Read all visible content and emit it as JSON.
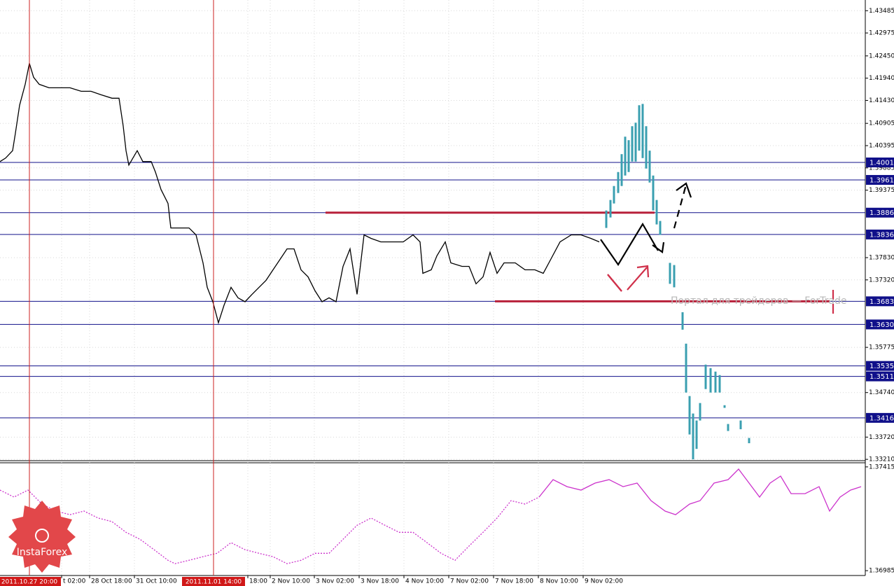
{
  "chart_data": {
    "type": "line",
    "xlim": [
      0,
      309
    ],
    "ylim": [
      1.3318,
      1.4373
    ],
    "grid": true,
    "yticks": [
      1.43485,
      1.42975,
      {
        "value": 1.4245,
        "label": "1.42450"
      },
      {
        "value": 1.4194,
        "label": "1.41940"
      },
      {
        "value": 1.4143,
        "label": "1.41430"
      },
      1.40905,
      1.40395,
      1.39885,
      1.39375,
      {
        "value": 1.3783,
        "label": "1.37830"
      },
      {
        "value": 1.3732,
        "label": "1.37320"
      },
      1.35775,
      {
        "value": 1.3474,
        "label": "1.34740"
      },
      {
        "value": 1.3372,
        "label": "1.33720"
      },
      {
        "value": 1.3321,
        "label": "1.33210"
      }
    ],
    "xticks": [
      {
        "value": 22,
        "label": "t 02:00"
      },
      {
        "value": 32,
        "label": "28 Oct 18:00"
      },
      {
        "value": 48,
        "label": "31 Oct 10:00"
      },
      {
        "value": 88.5,
        "label": "18:00"
      },
      {
        "value": 96.5,
        "label": "2 Nov 10:00"
      },
      {
        "value": 112.25,
        "label": "3 Nov 02:00"
      },
      {
        "value": 128.25,
        "label": "3 Nov 18:00"
      },
      {
        "value": 144.25,
        "label": "4 Nov 10:00"
      },
      {
        "value": 160.25,
        "label": "7 Nov 02:00"
      },
      {
        "value": 176.25,
        "label": "7 Nov 18:00"
      },
      {
        "value": 192.25,
        "label": "8 Nov 10:00"
      },
      {
        "value": 208.25,
        "label": "9 Nov 02:00"
      }
    ],
    "markers": [
      {
        "x": 10.5,
        "label": "2011.10.27 20:00"
      },
      {
        "x": 76.25,
        "label": "2011.11.01 14:00"
      }
    ],
    "price": {
      "color": "#000000",
      "x": [
        0,
        2,
        4.5,
        5.5,
        7,
        9,
        10.5,
        12,
        14,
        17.5,
        21,
        25,
        29,
        32.5,
        36,
        40,
        42.5,
        44,
        45,
        46,
        49,
        51,
        54,
        55.5,
        57.5,
        60,
        61,
        64,
        67.5,
        70,
        72.5,
        74,
        76,
        78,
        80,
        82.5,
        85,
        87.5,
        90,
        92.5,
        95,
        97.5,
        100,
        102.5,
        105,
        107.5,
        110,
        112.5,
        115,
        117.5,
        120,
        122.5,
        125,
        127.5,
        130,
        132.5,
        136,
        140,
        144,
        147.5,
        150,
        151,
        154,
        156,
        159,
        161,
        165,
        167.5,
        170,
        172.5,
        175,
        177.5,
        180,
        184,
        187.5,
        191,
        194,
        196,
        200,
        204,
        207.5,
        211,
        214
      ],
      "values": [
        1.4003,
        1.4011,
        1.4028,
        1.4068,
        1.4132,
        1.418,
        1.4228,
        1.4196,
        1.418,
        1.4172,
        1.4172,
        1.4172,
        1.4164,
        1.4164,
        1.4156,
        1.4148,
        1.4148,
        1.4084,
        1.4028,
        1.3995,
        1.4028,
        1.4003,
        1.4003,
        1.3979,
        1.3939,
        1.3907,
        1.3851,
        1.3851,
        1.3851,
        1.3835,
        1.3771,
        1.3715,
        1.3682,
        1.3634,
        1.3674,
        1.3715,
        1.3691,
        1.3682,
        1.3699,
        1.3715,
        1.3731,
        1.3755,
        1.3779,
        1.3803,
        1.3803,
        1.3755,
        1.3739,
        1.3707,
        1.3682,
        1.3691,
        1.3682,
        1.3763,
        1.3803,
        1.3699,
        1.3835,
        1.3827,
        1.3819,
        1.3819,
        1.3819,
        1.3835,
        1.3819,
        1.3747,
        1.3755,
        1.3787,
        1.3819,
        1.3771,
        1.3763,
        1.3763,
        1.3723,
        1.3739,
        1.3795,
        1.3747,
        1.3771,
        1.3771,
        1.3755,
        1.3755,
        1.3747,
        1.3771,
        1.3819,
        1.3835,
        1.3835,
        1.3827,
        1.3819
      ]
    },
    "forecast": {
      "color": "#3a9fb0",
      "x": [
        216.5,
        218,
        219.25,
        220.75,
        222,
        223.25,
        224.5,
        225.75,
        227,
        228.25,
        229.5,
        230.75,
        232,
        233.25,
        234.5,
        235.75,
        239.25,
        240.75,
        243.75,
        245,
        246.25,
        247.5,
        248.75,
        250,
        252,
        253.75,
        255.5,
        257,
        258.75,
        260,
        264.5,
        267.5
      ],
      "high": [
        1.3891,
        1.3915,
        1.3947,
        1.3979,
        1.402,
        1.406,
        1.4052,
        1.4084,
        1.4092,
        1.4132,
        1.4135,
        1.4084,
        1.4028,
        1.3971,
        1.3915,
        1.3867,
        1.3771,
        1.3766,
        1.3658,
        1.3586,
        1.3466,
        1.3426,
        1.341,
        1.345,
        1.3538,
        1.353,
        1.3522,
        1.3514,
        1.3445,
        1.3402,
        1.341,
        1.337
      ],
      "low": [
        1.3851,
        1.3875,
        1.3907,
        1.3931,
        1.3947,
        1.3971,
        1.3979,
        1.4003,
        1.4003,
        1.4028,
        1.4011,
        1.3987,
        1.3955,
        1.3891,
        1.3859,
        1.3835,
        1.3723,
        1.3715,
        1.3618,
        1.3474,
        1.3378,
        1.3321,
        1.3345,
        1.341,
        1.3482,
        1.3474,
        1.3474,
        1.3474,
        1.3439,
        1.3386,
        1.339,
        1.3358
      ]
    },
    "levels": {
      "color": "#10108a",
      "values": [
        1.4001,
        1.3961,
        1.3886,
        1.3836,
        1.3683,
        {
          "value": 1.363,
          "label": "1.3630"
        },
        1.3535,
        1.3511,
        1.3416
      ]
    },
    "trend_lines": [
      {
        "color": "#b8203a",
        "y": 1.3886,
        "x": [
          116.25,
          233.75
        ]
      },
      {
        "color": "#b8203a",
        "y": 1.3683,
        "x": [
          176.75,
          296.25
        ]
      }
    ],
    "watermark": "Портал для трейдеров — ForTrade",
    "logo": "InstaForex",
    "indicator": {
      "color": "#cc33cc",
      "ylim": [
        1.36965,
        1.37432
      ],
      "yticks": [
        1.37415,
        1.36985
      ],
      "dotted": {
        "x": [
          0,
          5,
          10,
          15,
          20,
          25,
          30,
          35,
          40,
          45,
          50,
          55,
          60,
          62.5,
          67.5,
          72.5,
          77.5,
          82.5,
          87.5,
          92.5,
          97.5,
          102.5,
          107.5,
          112.5,
          117.5,
          122.5,
          127.5,
          132.5,
          137.5,
          142.5,
          147.5,
          152.5,
          157.5,
          162.5,
          167.5,
          172.5,
          177.5,
          182.5,
          187.5,
          192.5
        ],
        "values": [
          1.37319,
          1.3729,
          1.37319,
          1.37261,
          1.37232,
          1.37217,
          1.37232,
          1.37203,
          1.37188,
          1.37144,
          1.37115,
          1.37072,
          1.37028,
          1.37014,
          1.37028,
          1.37043,
          1.37057,
          1.37101,
          1.37072,
          1.37057,
          1.37043,
          1.37014,
          1.37028,
          1.37057,
          1.37057,
          1.37115,
          1.37173,
          1.37203,
          1.37173,
          1.37144,
          1.37144,
          1.37101,
          1.37057,
          1.37028,
          1.37087,
          1.37144,
          1.37203,
          1.37275,
          1.37261,
          1.3729
        ]
      },
      "solid": {
        "x": [
          192.5,
          197.5,
          202.5,
          207.5,
          212.5,
          217.5,
          222.5,
          227.5,
          232.5,
          237.5,
          241.25,
          246.25,
          250,
          255,
          260,
          263.75,
          267.5,
          271.25,
          275,
          278.75,
          282.5,
          287.5,
          292.5,
          296.25,
          300,
          303.75,
          307.5
        ],
        "values": [
          1.3729,
          1.37362,
          1.37333,
          1.37319,
          1.37348,
          1.37362,
          1.37333,
          1.37348,
          1.37275,
          1.37232,
          1.37217,
          1.37261,
          1.37275,
          1.37348,
          1.37362,
          1.37406,
          1.37348,
          1.3729,
          1.37348,
          1.37377,
          1.37304,
          1.37304,
          1.37333,
          1.37232,
          1.3729,
          1.37319,
          1.37333
        ]
      }
    }
  }
}
